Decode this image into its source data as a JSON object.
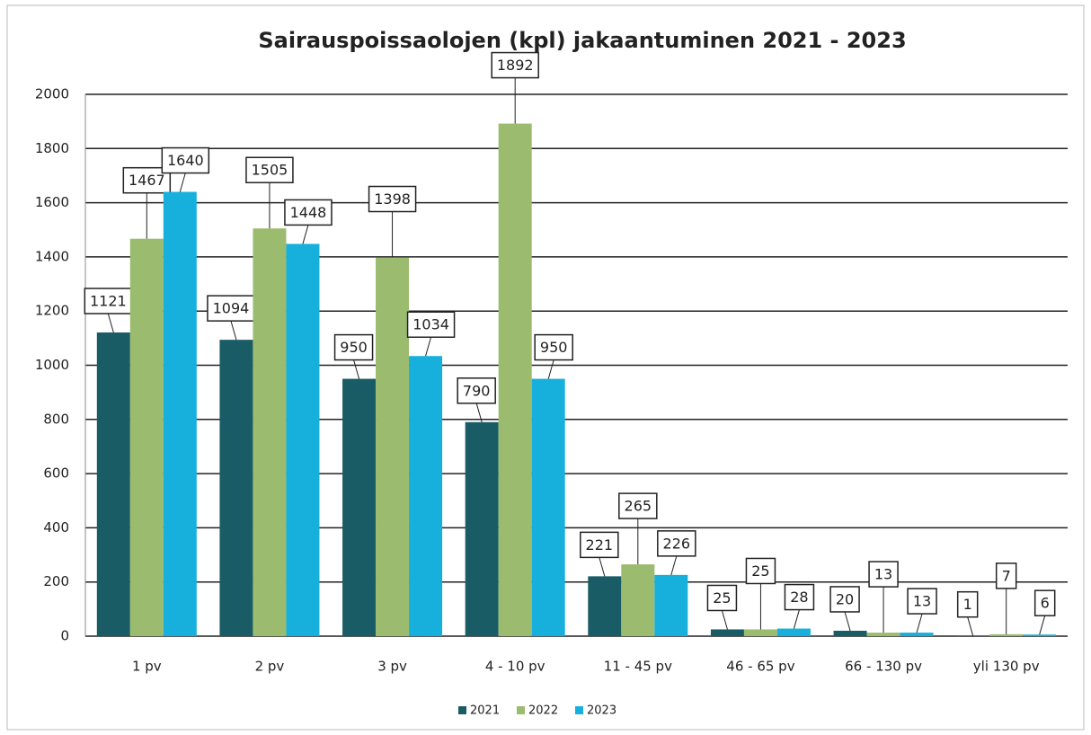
{
  "chart_data": {
    "type": "bar",
    "title": "Sairauspoissaolojen (kpl) jakaantuminen 2021 - 2023",
    "categories": [
      "1 pv",
      "2 pv",
      "3 pv",
      "4 - 10 pv",
      "11 - 45 pv",
      "46 - 65 pv",
      "66 - 130 pv",
      "yli 130 pv"
    ],
    "series": [
      {
        "name": "2021",
        "color": "#1a5c65",
        "values": [
          1121,
          1094,
          950,
          790,
          221,
          25,
          20,
          1
        ]
      },
      {
        "name": "2022",
        "color": "#9bbb6e",
        "values": [
          1467,
          1505,
          1398,
          1892,
          265,
          25,
          13,
          7
        ]
      },
      {
        "name": "2023",
        "color": "#17b0dc",
        "values": [
          1640,
          1448,
          1034,
          950,
          226,
          28,
          13,
          6
        ]
      }
    ],
    "ylim": [
      0,
      2000
    ],
    "yticks": [
      0,
      200,
      400,
      600,
      800,
      1000,
      1200,
      1400,
      1600,
      1800,
      2000
    ],
    "grid": true,
    "legend": "bottom"
  }
}
